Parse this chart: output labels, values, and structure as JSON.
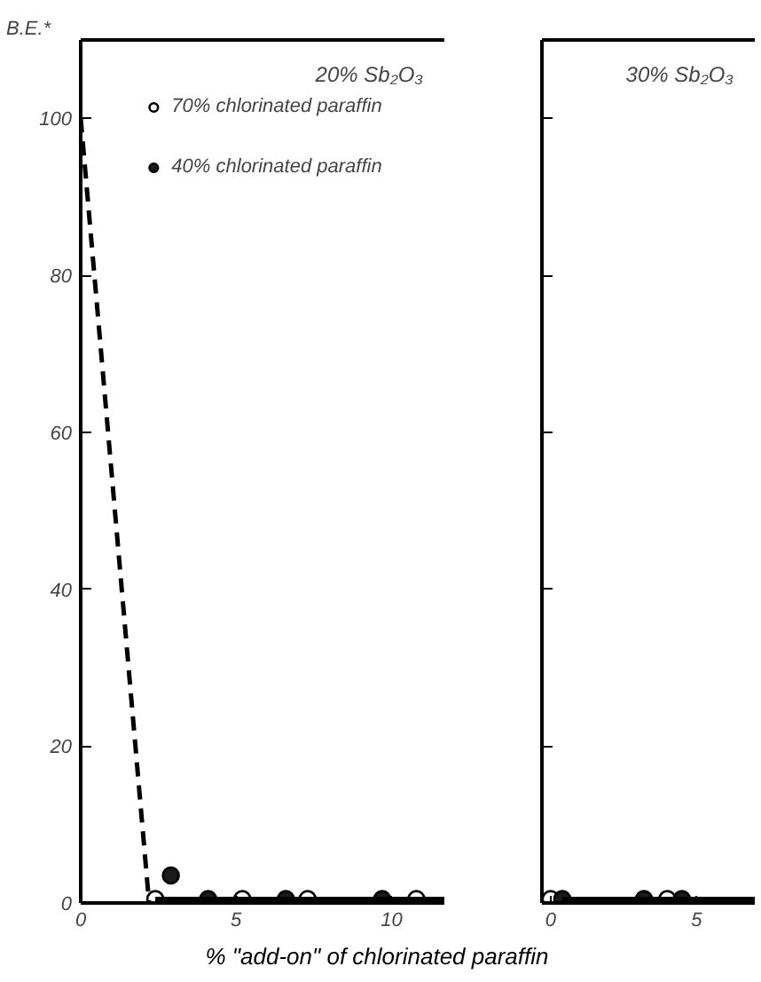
{
  "chart_data": [
    {
      "type": "scatter",
      "title": "20% Sb₂O₃",
      "ylabel": "B.E.*",
      "xlabel": "% \"add-on\" of chlorinated paraffin",
      "xlim": [
        0,
        11.7
      ],
      "ylim": [
        0,
        110
      ],
      "xticks": [
        0,
        5,
        10
      ],
      "yticks": [
        0,
        20,
        40,
        60,
        80,
        100
      ],
      "legend": "top",
      "grid": false,
      "series": [
        {
          "name": "70% chlorinated paraffin",
          "marker": "circle",
          "color": "#ffffff",
          "x": [
            2.4,
            5.2,
            7.3,
            10.8
          ],
          "values": [
            0.5,
            0.5,
            0.5,
            0.5
          ]
        },
        {
          "name": "40% chlorinated paraffin",
          "marker": "circle",
          "color": "#1a1a1a",
          "x": [
            2.9,
            4.1,
            6.6,
            9.7
          ],
          "values": [
            3.5,
            0.5,
            0.5,
            0.5
          ]
        },
        {
          "type": "line",
          "line_style": "dashed",
          "color": "#000000",
          "x": [
            0,
            2.2
          ],
          "values": [
            100,
            0
          ]
        },
        {
          "type": "line",
          "line_style": "solid",
          "color": "#000000",
          "x": [
            2.4,
            11.7
          ],
          "values": [
            0.5,
            0.5
          ]
        }
      ]
    },
    {
      "type": "scatter",
      "title": "30% Sb₂O₃",
      "xlim": [
        -0.3,
        7
      ],
      "ylim": [
        0,
        110
      ],
      "xticks": [
        0,
        5
      ],
      "yticks": [
        {
          "value": 20,
          "label": null
        },
        {
          "value": 40,
          "label": null
        },
        {
          "value": 60,
          "label": null
        },
        {
          "value": 80,
          "label": null
        },
        {
          "value": 100,
          "label": null
        }
      ],
      "tick_labels": "x",
      "grid": false,
      "series": [
        {
          "marker": "circle",
          "color": "#ffffff",
          "x": [
            0,
            4.0
          ],
          "values": [
            0.5,
            0.5
          ]
        },
        {
          "marker": "circle",
          "color": "#1a1a1a",
          "x": [
            0.4,
            3.2,
            4.5
          ],
          "values": [
            0.5,
            0.5,
            0.5
          ]
        },
        {
          "type": "line",
          "line_style": "solid",
          "color": "#000000",
          "x": [
            0.4,
            7
          ],
          "values": [
            0.5,
            0.5
          ]
        }
      ]
    }
  ]
}
